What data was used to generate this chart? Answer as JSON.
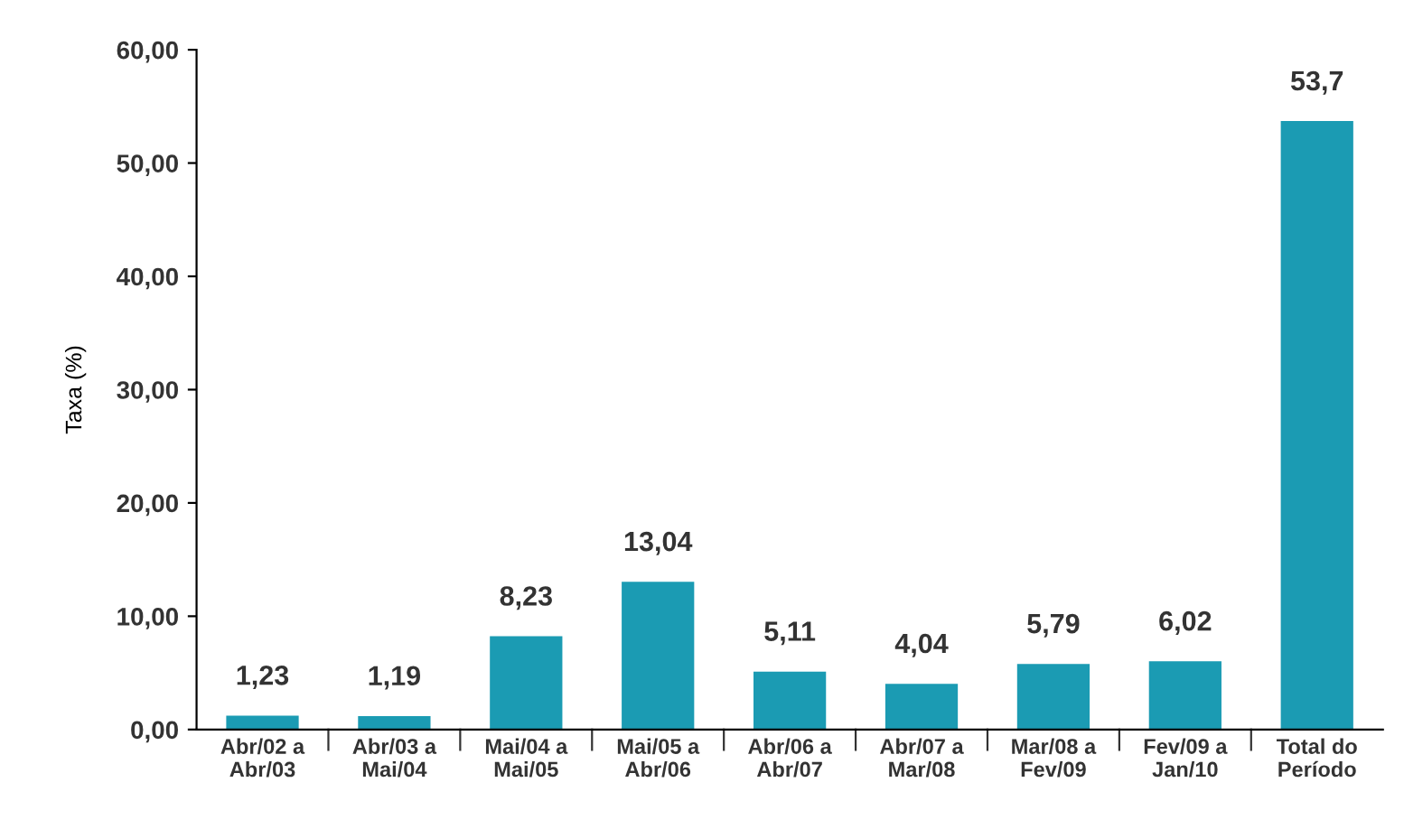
{
  "chart_data": {
    "type": "bar",
    "ylabel": "Taxa (%)",
    "categories": [
      "Abr/02 a\nAbr/03",
      "Abr/03 a\nMai/04",
      "Mai/04 a\nMai/05",
      "Mai/05 a\nAbr/06",
      "Abr/06 a\nAbr/07",
      "Abr/07 a\nMar/08",
      "Mar/08 a\nFev/09",
      "Fev/09 a\nJan/10",
      "Total do\nPeríodo"
    ],
    "values": [
      1.23,
      1.19,
      8.23,
      13.04,
      5.11,
      4.04,
      5.79,
      6.02,
      53.7
    ],
    "value_labels": [
      "1,23",
      "1,19",
      "8,23",
      "13,04",
      "5,11",
      "4,04",
      "5,79",
      "6,02",
      "53,7"
    ],
    "color": "#1b9bb3",
    "ylim": [
      0,
      60
    ],
    "yticks": [
      {
        "value": 0,
        "label": "0,00"
      },
      {
        "value": 10,
        "label": "10,00"
      },
      {
        "value": 20,
        "label": "20,00"
      },
      {
        "value": 30,
        "label": "30,00"
      },
      {
        "value": 40,
        "label": "40,00"
      },
      {
        "value": 50,
        "label": "50,00"
      },
      {
        "value": 60,
        "label": "60,00"
      }
    ],
    "grid": false,
    "legend": false
  }
}
